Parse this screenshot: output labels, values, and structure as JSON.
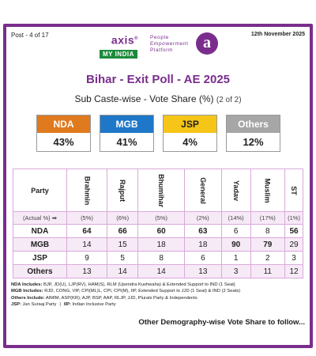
{
  "header": {
    "post": "Post - 4 of 17",
    "date": "12th November 2025",
    "logo_axis": "axis",
    "logo_reg": "®",
    "logo_myindia": "MY INDIA",
    "tagline": [
      "People",
      "Empowerment",
      "Platform"
    ],
    "brand_letter": "a"
  },
  "title": "Bihar - Exit Poll - AE 2025",
  "subtitle": "Sub Caste-wise - Vote Share (%)",
  "subtitle_part": "(2 of 2)",
  "cards": [
    {
      "label": "NDA",
      "value": "43%",
      "color": "#e07a1f",
      "text_color": "#ffffff"
    },
    {
      "label": "MGB",
      "value": "41%",
      "color": "#1f77c7",
      "text_color": "#ffffff"
    },
    {
      "label": "JSP",
      "value": "4%",
      "color": "#f5c518",
      "text_color": "#222222"
    },
    {
      "label": "Others",
      "value": "12%",
      "color": "#a6a6a6",
      "text_color": "#ffffff"
    }
  ],
  "table": {
    "party_header": "Party",
    "columns": [
      "Brahmin",
      "Rajput",
      "Bhumihar",
      "General",
      "Yadav",
      "Muslim",
      "ST"
    ],
    "actual_label": "(Actual %) ➡",
    "actual": [
      "(5%)",
      "(6%)",
      "(5%)",
      "(2%)",
      "(14%)",
      "(17%)",
      "(1%)"
    ],
    "rows": [
      {
        "label": "NDA",
        "values": [
          "64",
          "66",
          "60",
          "63",
          "6",
          "8",
          "56"
        ]
      },
      {
        "label": "MGB",
        "values": [
          "14",
          "15",
          "18",
          "18",
          "90",
          "79",
          "29"
        ]
      },
      {
        "label": "JSP",
        "values": [
          "9",
          "5",
          "8",
          "6",
          "1",
          "2",
          "3"
        ]
      },
      {
        "label": "Others",
        "values": [
          "13",
          "14",
          "14",
          "13",
          "3",
          "11",
          "12"
        ]
      }
    ]
  },
  "notes": {
    "nda_key": "NDA Includes:",
    "nda_val": "BJP, JD(U), LJP(RV), HAM(S), RLM (Upendra Kushwaha) & Extended Support to IND (1 Seat)",
    "mgb_key": "MGB Includes:",
    "mgb_val": "RJD, CONG, VIP, CPI(ML)L, CPI, CPI(M), IIP, Extended Support to JJD (1 Seat) & IND (2 Seats)",
    "oth_key": "Others Include:",
    "oth_val": "AIMIM, ASP(KR), AJP, BSP, AAP, RLJP, JJD, Plurals Party & Independents",
    "jsp_key": "JSP:",
    "jsp_val": "Jan Suraaj Party",
    "sep": "|",
    "iip_key": "IIP:",
    "iip_val": "Indian Inclusive Party"
  },
  "footer": "Other Demography-wise Vote Share to follow..."
}
